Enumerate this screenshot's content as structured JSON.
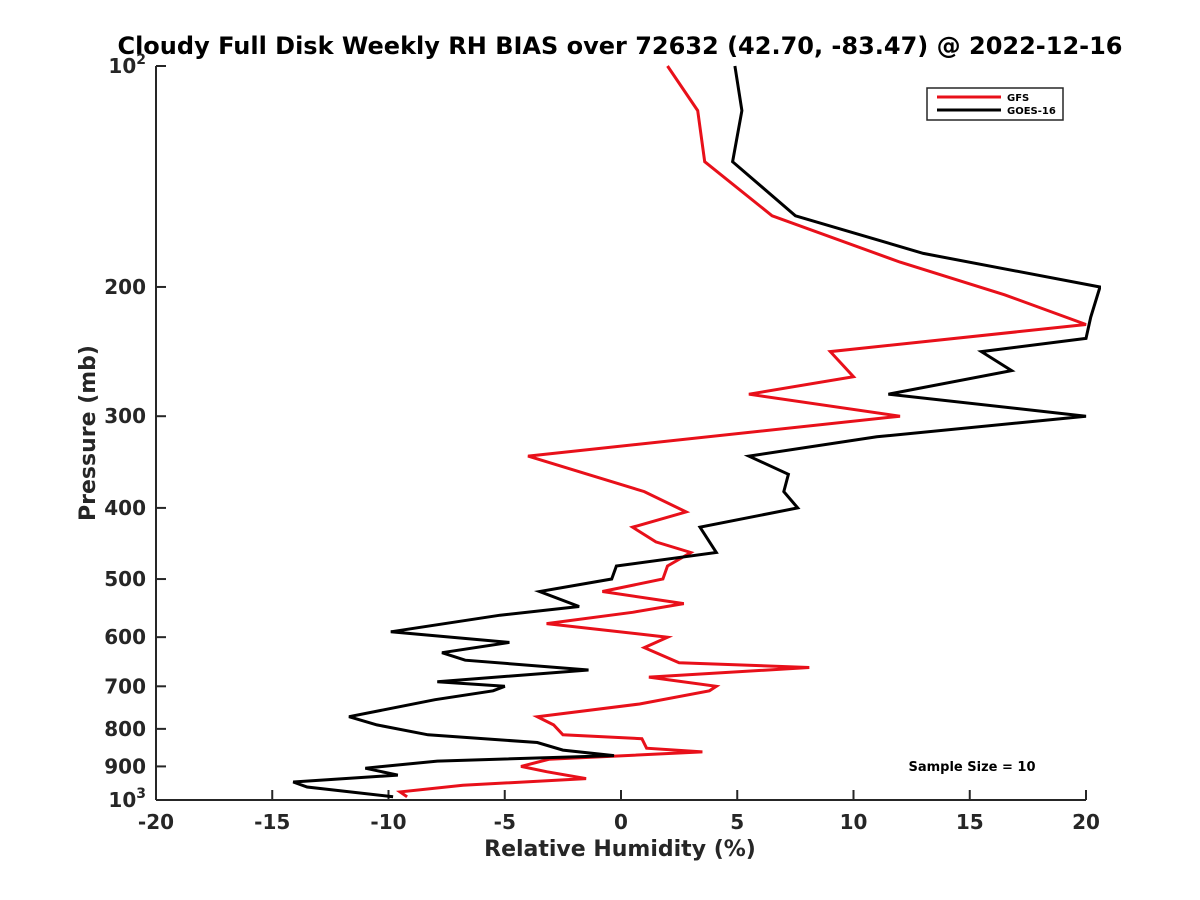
{
  "chart_data": {
    "type": "line",
    "title": "Cloudy Full Disk Weekly RH BIAS over 72632 (42.70, -83.47) @ 2022-12-16",
    "xlabel": "Relative Humidity (%)",
    "ylabel": "Pressure (mb)",
    "xlim": [
      -20,
      20
    ],
    "ylim": [
      1000,
      100
    ],
    "y_scale": "log",
    "y_inverted": true,
    "x_ticks": [
      "-20",
      "-15",
      "-10",
      "-5",
      "0",
      "5",
      "10",
      "15",
      "20"
    ],
    "y_ticks": [
      {
        "value": 100,
        "base": "10",
        "exp": "2"
      },
      {
        "value": 200,
        "label": "200"
      },
      {
        "value": 300,
        "label": "300"
      },
      {
        "value": 400,
        "label": "400"
      },
      {
        "value": 500,
        "label": "500"
      },
      {
        "value": 600,
        "label": "600"
      },
      {
        "value": 700,
        "label": "700"
      },
      {
        "value": 800,
        "label": "800"
      },
      {
        "value": 900,
        "label": "900"
      },
      {
        "value": 1000,
        "base": "10",
        "exp": "3"
      }
    ],
    "legend_position": "top-right",
    "annotation": "Sample Size = 10",
    "series": [
      {
        "name": "GFS",
        "color": "#e8101a",
        "points": [
          [
            2.0,
            100
          ],
          [
            3.3,
            115
          ],
          [
            3.6,
            135
          ],
          [
            6.5,
            160
          ],
          [
            12.0,
            185
          ],
          [
            16.5,
            205
          ],
          [
            20.0,
            225
          ],
          [
            9.0,
            245
          ],
          [
            10.0,
            265
          ],
          [
            5.5,
            280
          ],
          [
            12.0,
            300
          ],
          [
            -4.0,
            340
          ],
          [
            1.0,
            380
          ],
          [
            2.8,
            405
          ],
          [
            0.5,
            425
          ],
          [
            1.5,
            445
          ],
          [
            3.0,
            460
          ],
          [
            2.0,
            480
          ],
          [
            1.8,
            500
          ],
          [
            -0.8,
            520
          ],
          [
            2.7,
            540
          ],
          [
            0.5,
            555
          ],
          [
            -3.2,
            575
          ],
          [
            2.0,
            600
          ],
          [
            1.0,
            620
          ],
          [
            2.5,
            650
          ],
          [
            8.1,
            660
          ],
          [
            1.2,
            680
          ],
          [
            4.1,
            700
          ],
          [
            3.8,
            710
          ],
          [
            0.8,
            740
          ],
          [
            -3.6,
            770
          ],
          [
            -2.9,
            790
          ],
          [
            -2.5,
            815
          ],
          [
            0.9,
            825
          ],
          [
            1.1,
            850
          ],
          [
            3.5,
            860
          ],
          [
            -3.1,
            880
          ],
          [
            -4.3,
            900
          ],
          [
            -3.2,
            915
          ],
          [
            -1.5,
            935
          ],
          [
            -6.8,
            955
          ],
          [
            -9.5,
            975
          ],
          [
            -9.2,
            990
          ]
        ]
      },
      {
        "name": "GOES-16",
        "color": "#000000",
        "points": [
          [
            4.9,
            100
          ],
          [
            5.2,
            115
          ],
          [
            4.8,
            135
          ],
          [
            7.5,
            160
          ],
          [
            13.0,
            180
          ],
          [
            20.6,
            200
          ],
          [
            20.2,
            220
          ],
          [
            20.0,
            235
          ],
          [
            15.5,
            245
          ],
          [
            16.8,
            260
          ],
          [
            11.5,
            280
          ],
          [
            20.0,
            300
          ],
          [
            11.0,
            320
          ],
          [
            5.5,
            340
          ],
          [
            7.2,
            360
          ],
          [
            7.0,
            380
          ],
          [
            7.6,
            400
          ],
          [
            3.4,
            425
          ],
          [
            4.1,
            460
          ],
          [
            -0.2,
            480
          ],
          [
            -0.4,
            500
          ],
          [
            -3.5,
            520
          ],
          [
            -1.8,
            545
          ],
          [
            -5.2,
            560
          ],
          [
            -9.9,
            590
          ],
          [
            -4.8,
            610
          ],
          [
            -7.7,
            630
          ],
          [
            -6.7,
            645
          ],
          [
            -1.4,
            665
          ],
          [
            -7.9,
            690
          ],
          [
            -5.0,
            700
          ],
          [
            -5.5,
            710
          ],
          [
            -8.0,
            730
          ],
          [
            -11.7,
            770
          ],
          [
            -10.5,
            790
          ],
          [
            -8.3,
            815
          ],
          [
            -3.6,
            835
          ],
          [
            -2.5,
            855
          ],
          [
            -0.3,
            870
          ],
          [
            -7.9,
            885
          ],
          [
            -11.0,
            905
          ],
          [
            -9.6,
            925
          ],
          [
            -14.1,
            945
          ],
          [
            -13.5,
            960
          ],
          [
            -9.8,
            990
          ]
        ]
      }
    ]
  }
}
